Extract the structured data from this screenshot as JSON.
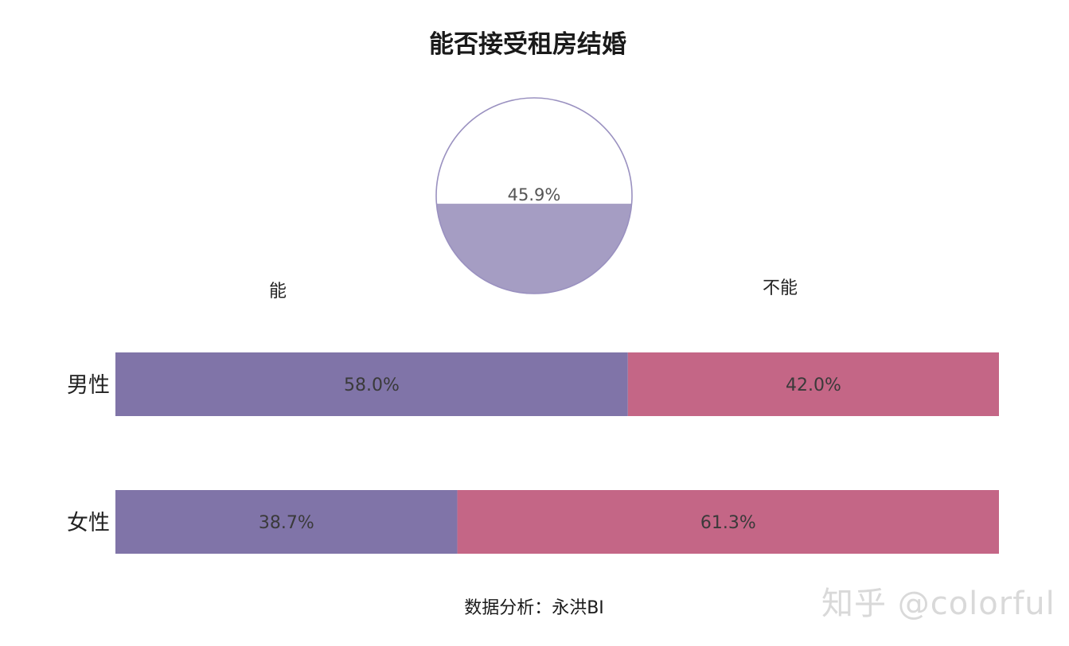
{
  "chart_data": {
    "type": "bar",
    "title": "能否接受租房结婚",
    "source": "数据分析：永洪BI",
    "watermark": "知乎 @colorful",
    "column_headers": [
      "能",
      "不能"
    ],
    "categories": [
      "男性",
      "女性"
    ],
    "stacked": true,
    "orientation": "horizontal",
    "series": [
      {
        "values": [
          58.0,
          38.7
        ],
        "labels": [
          "58.0%",
          "38.7%"
        ],
        "color": "#8074a8"
      },
      {
        "values": [
          42.0,
          61.3
        ],
        "labels": [
          "42.0%",
          "61.3%"
        ],
        "color": "#c46686"
      }
    ],
    "xlim": [
      0,
      100
    ],
    "grid": false,
    "pie": {
      "value": 45.9,
      "label": "45.9%",
      "fill_type": "liquid-level",
      "fill_color": "#a59dc3",
      "outline_color": "#9a91c0"
    }
  }
}
